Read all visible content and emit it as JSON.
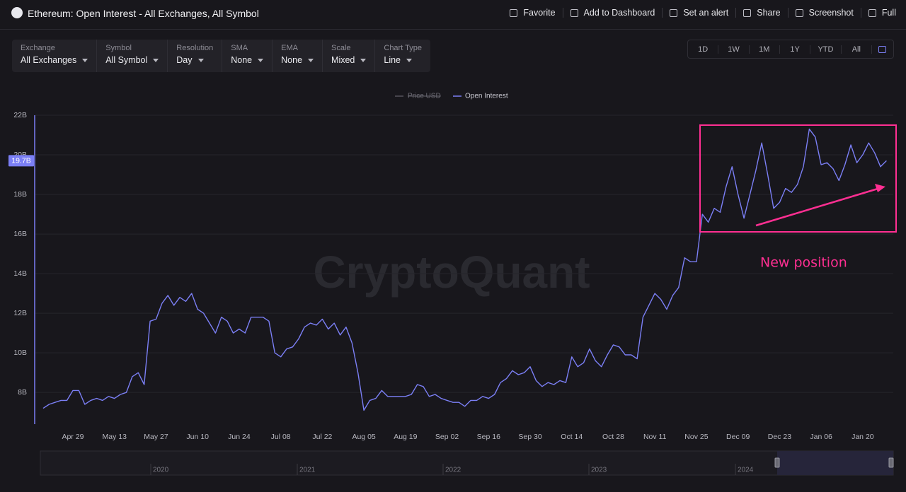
{
  "header": {
    "title": "Ethereum: Open Interest - All Exchanges, All Symbol",
    "actions": [
      "Favorite",
      "Add to Dashboard",
      "Set an alert",
      "Share",
      "Screenshot",
      "Full"
    ]
  },
  "filters": [
    {
      "label": "Exchange",
      "value": "All Exchanges"
    },
    {
      "label": "Symbol",
      "value": "All Symbol"
    },
    {
      "label": "Resolution",
      "value": "Day"
    },
    {
      "label": "SMA",
      "value": "None"
    },
    {
      "label": "EMA",
      "value": "None"
    },
    {
      "label": "Scale",
      "value": "Mixed"
    },
    {
      "label": "Chart Type",
      "value": "Line"
    }
  ],
  "ranges": [
    "1D",
    "1W",
    "1M",
    "1Y",
    "YTD",
    "All"
  ],
  "chart_data": {
    "type": "line",
    "watermark": "CryptoQuant",
    "hidden_series": [
      {
        "name": "Price USD",
        "color": "#55545c"
      }
    ],
    "categories": [
      null,
      null,
      null,
      null,
      null,
      "Apr 29",
      null,
      null,
      null,
      null,
      null,
      null,
      "May 13",
      null,
      null,
      null,
      null,
      null,
      null,
      "May 27",
      null,
      null,
      null,
      null,
      null,
      null,
      "Jun 10",
      null,
      null,
      null,
      null,
      null,
      null,
      "Jun 24",
      null,
      null,
      null,
      null,
      null,
      null,
      "Jul 08",
      null,
      null,
      null,
      null,
      null,
      null,
      "Jul 22",
      null,
      null,
      null,
      null,
      null,
      null,
      "Aug 05",
      null,
      null,
      null,
      null,
      null,
      null,
      "Aug 19",
      null,
      null,
      null,
      null,
      null,
      null,
      "Sep 02",
      null,
      null,
      null,
      null,
      null,
      null,
      "Sep 16",
      null,
      null,
      null,
      null,
      null,
      null,
      "Sep 30",
      null,
      null,
      null,
      null,
      null,
      null,
      "Oct 14",
      null,
      null,
      null,
      null,
      null,
      null,
      "Oct 28",
      null,
      null,
      null,
      null,
      null,
      null,
      "Nov 11",
      null,
      null,
      null,
      null,
      null,
      null,
      "Nov 25",
      null,
      null,
      null,
      null,
      null,
      null,
      "Dec 09",
      null,
      null,
      null,
      null,
      null,
      null,
      "Dec 23",
      null,
      null,
      null,
      null,
      null,
      null,
      "Jan 06",
      null,
      null,
      null,
      null,
      null,
      null,
      "Jan 20",
      null,
      null,
      null,
      null
    ],
    "series": [
      {
        "name": "Open Interest",
        "color": "#7b7ff5",
        "values": [
          7.2,
          7.4,
          7.5,
          7.6,
          7.6,
          8.1,
          8.1,
          7.4,
          7.6,
          7.7,
          7.6,
          7.8,
          7.7,
          7.9,
          8.0,
          8.8,
          9.0,
          8.4,
          11.6,
          11.7,
          12.5,
          12.9,
          12.4,
          12.8,
          12.6,
          13.0,
          12.2,
          12.0,
          11.5,
          11.0,
          11.8,
          11.6,
          11.0,
          11.2,
          11.0,
          11.8,
          11.8,
          11.8,
          11.6,
          10.0,
          9.8,
          10.2,
          10.3,
          10.7,
          11.3,
          11.5,
          11.4,
          11.7,
          11.2,
          11.5,
          10.9,
          11.3,
          10.5,
          9.0,
          7.1,
          7.6,
          7.7,
          8.1,
          7.8,
          7.8,
          7.8,
          7.8,
          7.9,
          8.4,
          8.3,
          7.8,
          7.9,
          7.7,
          7.6,
          7.5,
          7.5,
          7.3,
          7.6,
          7.6,
          7.8,
          7.7,
          7.9,
          8.5,
          8.7,
          9.1,
          8.9,
          9.0,
          9.3,
          8.6,
          8.3,
          8.5,
          8.4,
          8.6,
          8.5,
          9.8,
          9.3,
          9.5,
          10.2,
          9.6,
          9.3,
          9.9,
          10.4,
          10.3,
          9.9,
          9.9,
          9.7,
          11.8,
          12.4,
          13.0,
          12.7,
          12.2,
          12.9,
          13.3,
          14.8,
          14.6,
          14.6,
          17.0,
          16.6,
          17.3,
          17.1,
          18.4,
          19.4,
          18.0,
          16.8,
          18.0,
          19.2,
          20.6,
          19.0,
          17.3,
          17.6,
          18.3,
          18.1,
          18.5,
          19.4,
          21.3,
          20.9,
          19.5,
          19.6,
          19.3,
          18.7,
          19.5,
          20.5,
          19.6,
          20.0,
          20.6,
          20.1,
          19.4,
          19.7
        ]
      }
    ],
    "current_label": "19.7B",
    "ylim": [
      6.4,
      22
    ],
    "yticks": [
      {
        "value": 8,
        "label": "8B"
      },
      {
        "value": 10,
        "label": "10B"
      },
      {
        "value": 12,
        "label": "12B"
      },
      {
        "value": 14,
        "label": "14B"
      },
      {
        "value": 16,
        "label": "16B"
      },
      {
        "value": 18,
        "label": "18B"
      },
      {
        "value": 20,
        "label": "20B"
      },
      {
        "value": 22,
        "label": "22B"
      }
    ],
    "grid": true,
    "annotation": "New position",
    "navigator_labels": [
      "2020",
      "2021",
      "2022",
      "2023",
      "2024"
    ]
  }
}
